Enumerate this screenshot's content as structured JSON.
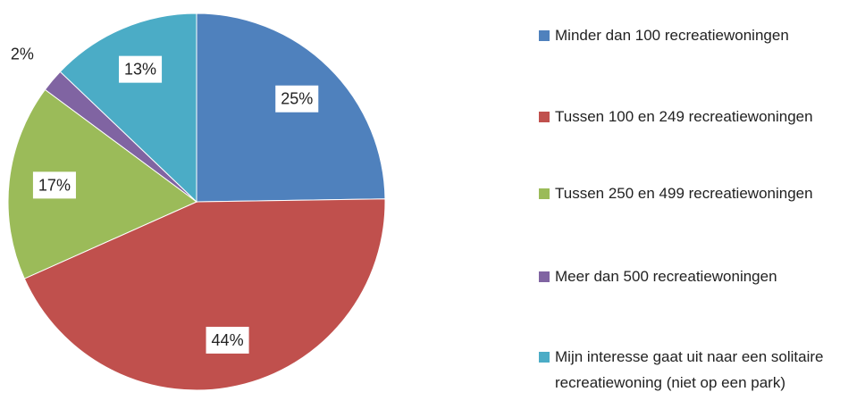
{
  "chart_data": {
    "type": "pie",
    "categories": [
      "Minder dan 100 recreatiewoningen",
      "Tussen 100 en 249 recreatiewoningen",
      "Tussen 250 en 499 recreatiewoningen",
      "Meer dan 500 recreatiewoningen",
      "Mijn interesse gaat uit naar een solitaire recreatiewoning (niet op een park)"
    ],
    "values": [
      25,
      44,
      17,
      2,
      13
    ],
    "value_labels": [
      "25%",
      "44%",
      "17%",
      "2%",
      "13%"
    ],
    "colors": [
      "#4f81bd",
      "#c0504d",
      "#9bbb59",
      "#8064a2",
      "#4bacc6"
    ],
    "legend": "right"
  }
}
